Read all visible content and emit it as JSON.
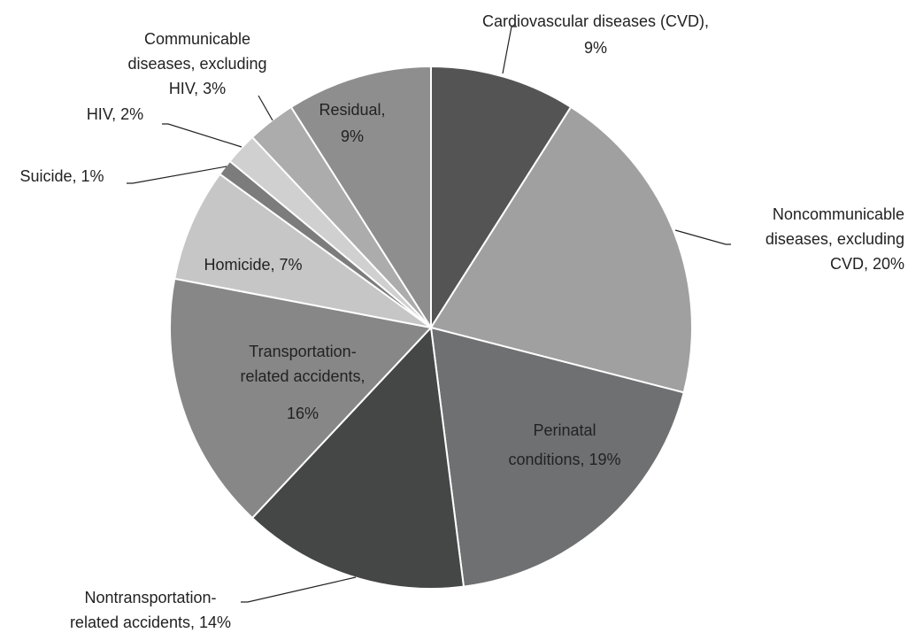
{
  "chart_data": {
    "type": "pie",
    "categories": [
      "Cardiovascular diseases (CVD)",
      "Noncommunicable diseases, excluding CVD",
      "Perinatal conditions",
      "Nontransportation-related accidents",
      "Transportation-related accidents",
      "Homicide",
      "Suicide",
      "HIV",
      "Communicable diseases, excluding HIV",
      "Residual"
    ],
    "values": [
      9,
      20,
      19,
      14,
      16,
      7,
      1,
      2,
      3,
      9
    ],
    "value_labels": [
      [
        "Cardiovascular diseases (CVD),",
        "9%"
      ],
      [
        "Noncommunicable",
        "diseases, excluding",
        "CVD, 20%"
      ],
      [
        "Perinatal",
        "conditions, 19%"
      ],
      [
        "Nontransportation-",
        "related accidents, 14%"
      ],
      [
        "Transportation-",
        "related accidents,",
        "16%"
      ],
      [
        "Homicide, 7%"
      ],
      [
        "Suicide, 1%"
      ],
      [
        "HIV, 2%"
      ],
      [
        "Communicable",
        "diseases, excluding",
        "HIV, 3%"
      ],
      [
        "Residual,",
        "9%"
      ]
    ],
    "colors": [
      "#545454",
      "#a0a0a0",
      "#6f7072",
      "#454646",
      "#878787",
      "#c6c6c6",
      "#7c7c7c",
      "#d0d0d0",
      "#acacac",
      "#8e8e8e"
    ]
  }
}
